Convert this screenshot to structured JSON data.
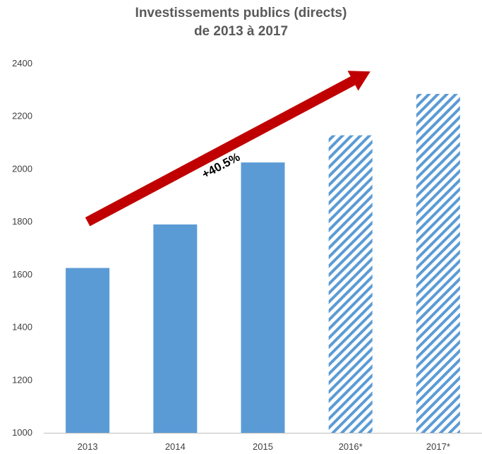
{
  "chart_data": {
    "type": "bar",
    "title_line1": "Investissements publics (directs)",
    "title_line2": "de 2013 à 2017",
    "categories": [
      "2013",
      "2014",
      "2015",
      "2016*",
      "2017*"
    ],
    "values": [
      1625,
      1790,
      2025,
      2128,
      2285
    ],
    "projected": [
      false,
      false,
      false,
      true,
      true
    ],
    "ylim": [
      1000,
      2400
    ],
    "yticks": [
      1000,
      1200,
      1400,
      1600,
      1800,
      2000,
      2200,
      2400
    ],
    "grid": false,
    "annotation": "+40.5%",
    "colors": {
      "bar": "#5B9BD5",
      "arrow": "#C00000",
      "axis": "#BFBFBF"
    }
  }
}
